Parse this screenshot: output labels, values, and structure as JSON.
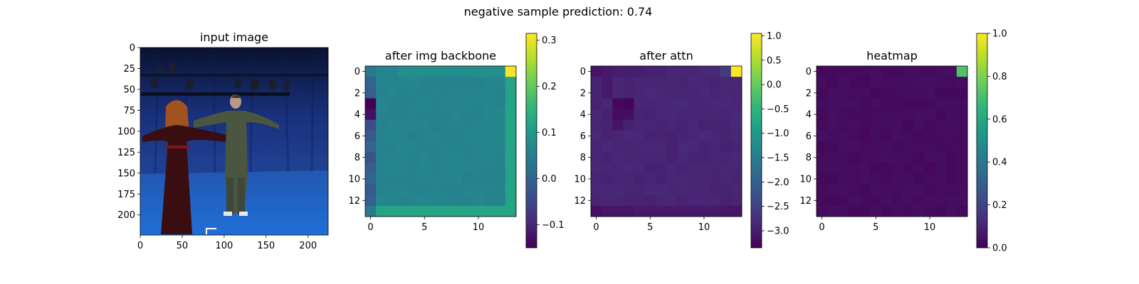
{
  "suptitle": "negative sample     prediction: 0.74",
  "colors": {
    "viridis_stops": [
      "#440154",
      "#482878",
      "#3e4a89",
      "#31688e",
      "#26828e",
      "#1f9e89",
      "#35b779",
      "#6ece58",
      "#b5de2b",
      "#fde725"
    ],
    "photo_bg_top": "#0b1a4a",
    "photo_bg_mid": "#1d3f8f",
    "photo_floor": "#1f5fc0",
    "dress": "#3a0d10",
    "suit": "#4a5640",
    "skin": "#c9a38a"
  },
  "chart_data": [
    {
      "type": "image",
      "title": "input image",
      "subject": "photograph: two people (woman in dark red dress, man in grey suit) standing with arms outstretched in a blue motion-capture studio",
      "xlim": [
        0,
        224
      ],
      "ylim": [
        224,
        0
      ],
      "xticks": [
        0,
        50,
        100,
        150,
        200
      ],
      "yticks": [
        0,
        25,
        50,
        75,
        100,
        125,
        150,
        175,
        200
      ]
    },
    {
      "type": "heatmap",
      "title": "after img backbone",
      "grid_size": 14,
      "xticks": [
        0,
        5,
        10
      ],
      "yticks": [
        0,
        2,
        4,
        6,
        8,
        10,
        12
      ],
      "colorbar": {
        "min": -0.15,
        "max": 0.315,
        "ticks": [
          -0.1,
          0.0,
          0.1,
          0.2,
          0.3
        ],
        "tick_labels": [
          "−0.1",
          "0.0",
          "0.1",
          "0.2",
          "0.3"
        ]
      },
      "base_value": 0.06,
      "right_column_value": 0.12,
      "bottom_row_value": 0.12,
      "left_column_values": [
        -0.02,
        0.0,
        -0.01,
        -0.15,
        -0.13,
        -0.04,
        -0.02,
        0.0,
        -0.03,
        -0.01,
        0.0,
        -0.02,
        -0.01,
        0.04
      ],
      "top_row_values": [
        0.04,
        0.06,
        0.06,
        0.08,
        0.08,
        0.08,
        0.08,
        0.08,
        0.08,
        0.08,
        0.08,
        0.08,
        0.08,
        0.31
      ]
    },
    {
      "type": "heatmap",
      "title": "after attn",
      "grid_size": 14,
      "xticks": [
        0,
        5,
        10
      ],
      "yticks": [
        0,
        2,
        4,
        6,
        8,
        10,
        12
      ],
      "colorbar": {
        "min": -3.35,
        "max": 1.05,
        "ticks": [
          -3.0,
          -2.5,
          -2.0,
          -1.5,
          -1.0,
          -0.5,
          0.0,
          0.5,
          1.0
        ],
        "tick_labels": [
          "−3.0",
          "−2.5",
          "−2.0",
          "−1.5",
          "−1.0",
          "−0.5",
          "0.0",
          "0.5",
          "1.0"
        ]
      },
      "base_value": -2.9,
      "dark_cells": [
        [
          3,
          2,
          -3.25
        ],
        [
          3,
          3,
          -3.3
        ],
        [
          4,
          2,
          -3.2
        ],
        [
          4,
          3,
          -3.2
        ],
        [
          5,
          2,
          -3.1
        ],
        [
          1,
          1,
          -3.05
        ],
        [
          2,
          1,
          -3.05
        ]
      ],
      "top_row_values": [
        -3.1,
        -3.05,
        -3.0,
        -3.0,
        -3.0,
        -2.95,
        -2.95,
        -2.9,
        -2.9,
        -2.9,
        -2.85,
        -2.85,
        -2.6,
        1.05
      ],
      "bottom_row_values": [
        -3.15,
        -3.1,
        -3.1,
        -3.1,
        -3.05,
        -3.05,
        -3.05,
        -3.05,
        -3.05,
        -3.05,
        -3.05,
        -3.05,
        -3.1,
        -3.1
      ]
    },
    {
      "type": "heatmap",
      "title": "heatmap",
      "grid_size": 14,
      "xticks": [
        0,
        5,
        10
      ],
      "yticks": [
        0,
        2,
        4,
        6,
        8,
        10,
        12
      ],
      "colorbar": {
        "min": 0.0,
        "max": 1.0,
        "ticks": [
          0.0,
          0.2,
          0.4,
          0.6,
          0.8,
          1.0
        ],
        "tick_labels": [
          "0.0",
          "0.2",
          "0.4",
          "0.6",
          "0.8",
          "1.0"
        ]
      },
      "base_value": 0.03,
      "top_right_value": 0.72
    }
  ]
}
